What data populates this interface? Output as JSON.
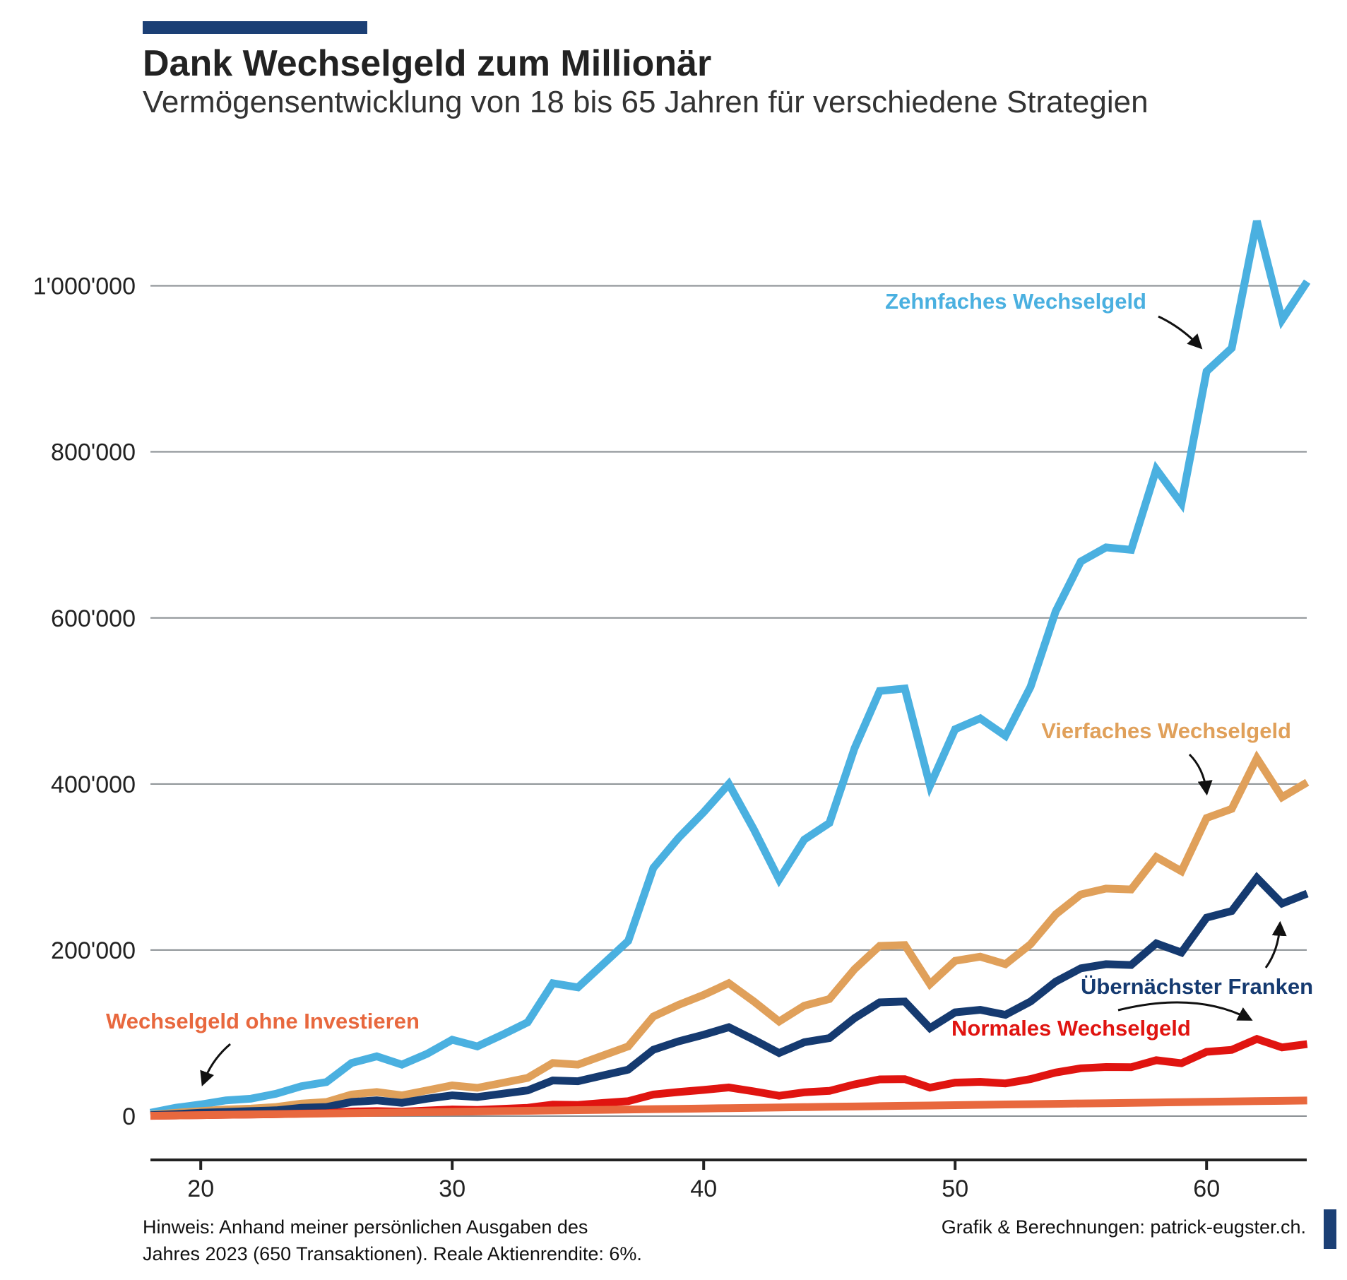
{
  "header": {
    "title": "Dank Wechselgeld zum Millionär",
    "subtitle": "Vermögensentwicklung von 18 bis 65 Jahren für verschiedene Strategien"
  },
  "footer": {
    "note_line1": "Hinweis: Anhand meiner persönlichen Ausgaben des",
    "note_line2": "Jahres 2023 (650 Transaktionen). Reale Aktienrendite: 6%.",
    "credit": "Grafik & Berechnungen: patrick-eugster.ch."
  },
  "colors": {
    "accent": "#1b3f75",
    "grid": "#8a8f93",
    "axis": "#222222"
  },
  "chart_data": {
    "type": "line",
    "title": "Dank Wechselgeld zum Millionär",
    "subtitle": "Vermögensentwicklung von 18 bis 65 Jahren für verschiedene Strategien",
    "xlabel": "",
    "ylabel": "",
    "xlim": [
      18,
      64
    ],
    "ylim": [
      -100000,
      1100000
    ],
    "grid": true,
    "legend": "inline-annotations",
    "x_ticks": [
      20,
      30,
      40,
      50,
      60
    ],
    "x_tick_labels": [
      "20",
      "30",
      "40",
      "50",
      "60"
    ],
    "y_ticks": [
      0,
      200000,
      400000,
      600000,
      800000,
      1000000
    ],
    "y_tick_labels": [
      "0",
      "200'000",
      "400'000",
      "600'000",
      "800'000",
      "1'000'000"
    ],
    "x": [
      18,
      19,
      20,
      21,
      22,
      23,
      24,
      25,
      26,
      27,
      28,
      29,
      30,
      31,
      32,
      33,
      34,
      35,
      36,
      37,
      38,
      39,
      40,
      41,
      42,
      43,
      44,
      45,
      46,
      47,
      48,
      49,
      50,
      51,
      52,
      53,
      54,
      55,
      56,
      57,
      58,
      59,
      60,
      61,
      62,
      63,
      64
    ],
    "series": [
      {
        "name": "Zehnfaches Wechselgeld",
        "color": "#4ab0e0",
        "values": [
          4000,
          10000,
          14000,
          19000,
          21000,
          27000,
          36000,
          41000,
          64000,
          72000,
          62000,
          75000,
          92000,
          84000,
          98000,
          113000,
          160000,
          155000,
          183000,
          211000,
          299000,
          335000,
          366000,
          400000,
          345000,
          285000,
          333000,
          353000,
          443000,
          512000,
          515000,
          398000,
          466000,
          479000,
          458000,
          517000,
          608000,
          668000,
          685000,
          682000,
          779000,
          738000,
          897000,
          925000,
          1078000,
          959000,
          1005000
        ]
      },
      {
        "name": "Vierfaches Wechselgeld",
        "color": "#e0a05a",
        "values": [
          1500,
          4000,
          6000,
          8000,
          9000,
          11000,
          15000,
          17000,
          26000,
          29000,
          25000,
          31000,
          37000,
          34000,
          40000,
          46000,
          64000,
          62000,
          73000,
          84000,
          120000,
          134000,
          146000,
          160000,
          138000,
          114000,
          133000,
          141000,
          177000,
          205000,
          206000,
          159000,
          187000,
          192000,
          183000,
          207000,
          243000,
          267000,
          274000,
          273000,
          312000,
          295000,
          359000,
          370000,
          431000,
          384000,
          402000
        ]
      },
      {
        "name": "Übernächster Franken",
        "color": "#153a70",
        "values": [
          1000,
          2500,
          4000,
          5000,
          6000,
          7000,
          10000,
          11000,
          17000,
          19000,
          16000,
          21000,
          25000,
          23000,
          27000,
          31000,
          43000,
          42000,
          49000,
          56000,
          80000,
          90000,
          98000,
          107000,
          92000,
          76000,
          89000,
          94000,
          118000,
          137000,
          138000,
          106000,
          125000,
          128000,
          122000,
          138000,
          162000,
          178000,
          183000,
          182000,
          208000,
          197000,
          239000,
          247000,
          287000,
          256000,
          268000
        ]
      },
      {
        "name": "Normales Wechselgeld",
        "color": "#e01410",
        "values": [
          300,
          800,
          1200,
          1600,
          1900,
          2300,
          3000,
          3500,
          5500,
          6000,
          5300,
          6700,
          8000,
          7400,
          8700,
          10000,
          13800,
          13400,
          15800,
          18000,
          26000,
          29000,
          31600,
          34500,
          29800,
          24500,
          28700,
          30400,
          38200,
          44200,
          44500,
          34300,
          40300,
          41300,
          39400,
          44600,
          52500,
          57600,
          59100,
          58900,
          67300,
          63700,
          77400,
          79800,
          92900,
          82800,
          86700
        ]
      },
      {
        "name": "Wechselgeld ohne Investieren",
        "color": "#e8683e",
        "values": [
          400,
          800,
          1200,
          1600,
          2000,
          2400,
          2800,
          3200,
          3600,
          4000,
          4400,
          4800,
          5200,
          5600,
          6000,
          6400,
          6800,
          7200,
          7600,
          8000,
          8400,
          8800,
          9200,
          9600,
          10000,
          10400,
          10800,
          11200,
          11600,
          12000,
          12400,
          12800,
          13200,
          13600,
          14000,
          14400,
          14800,
          15200,
          15600,
          16000,
          16400,
          16800,
          17200,
          17600,
          18000,
          18400,
          18800
        ]
      }
    ]
  }
}
